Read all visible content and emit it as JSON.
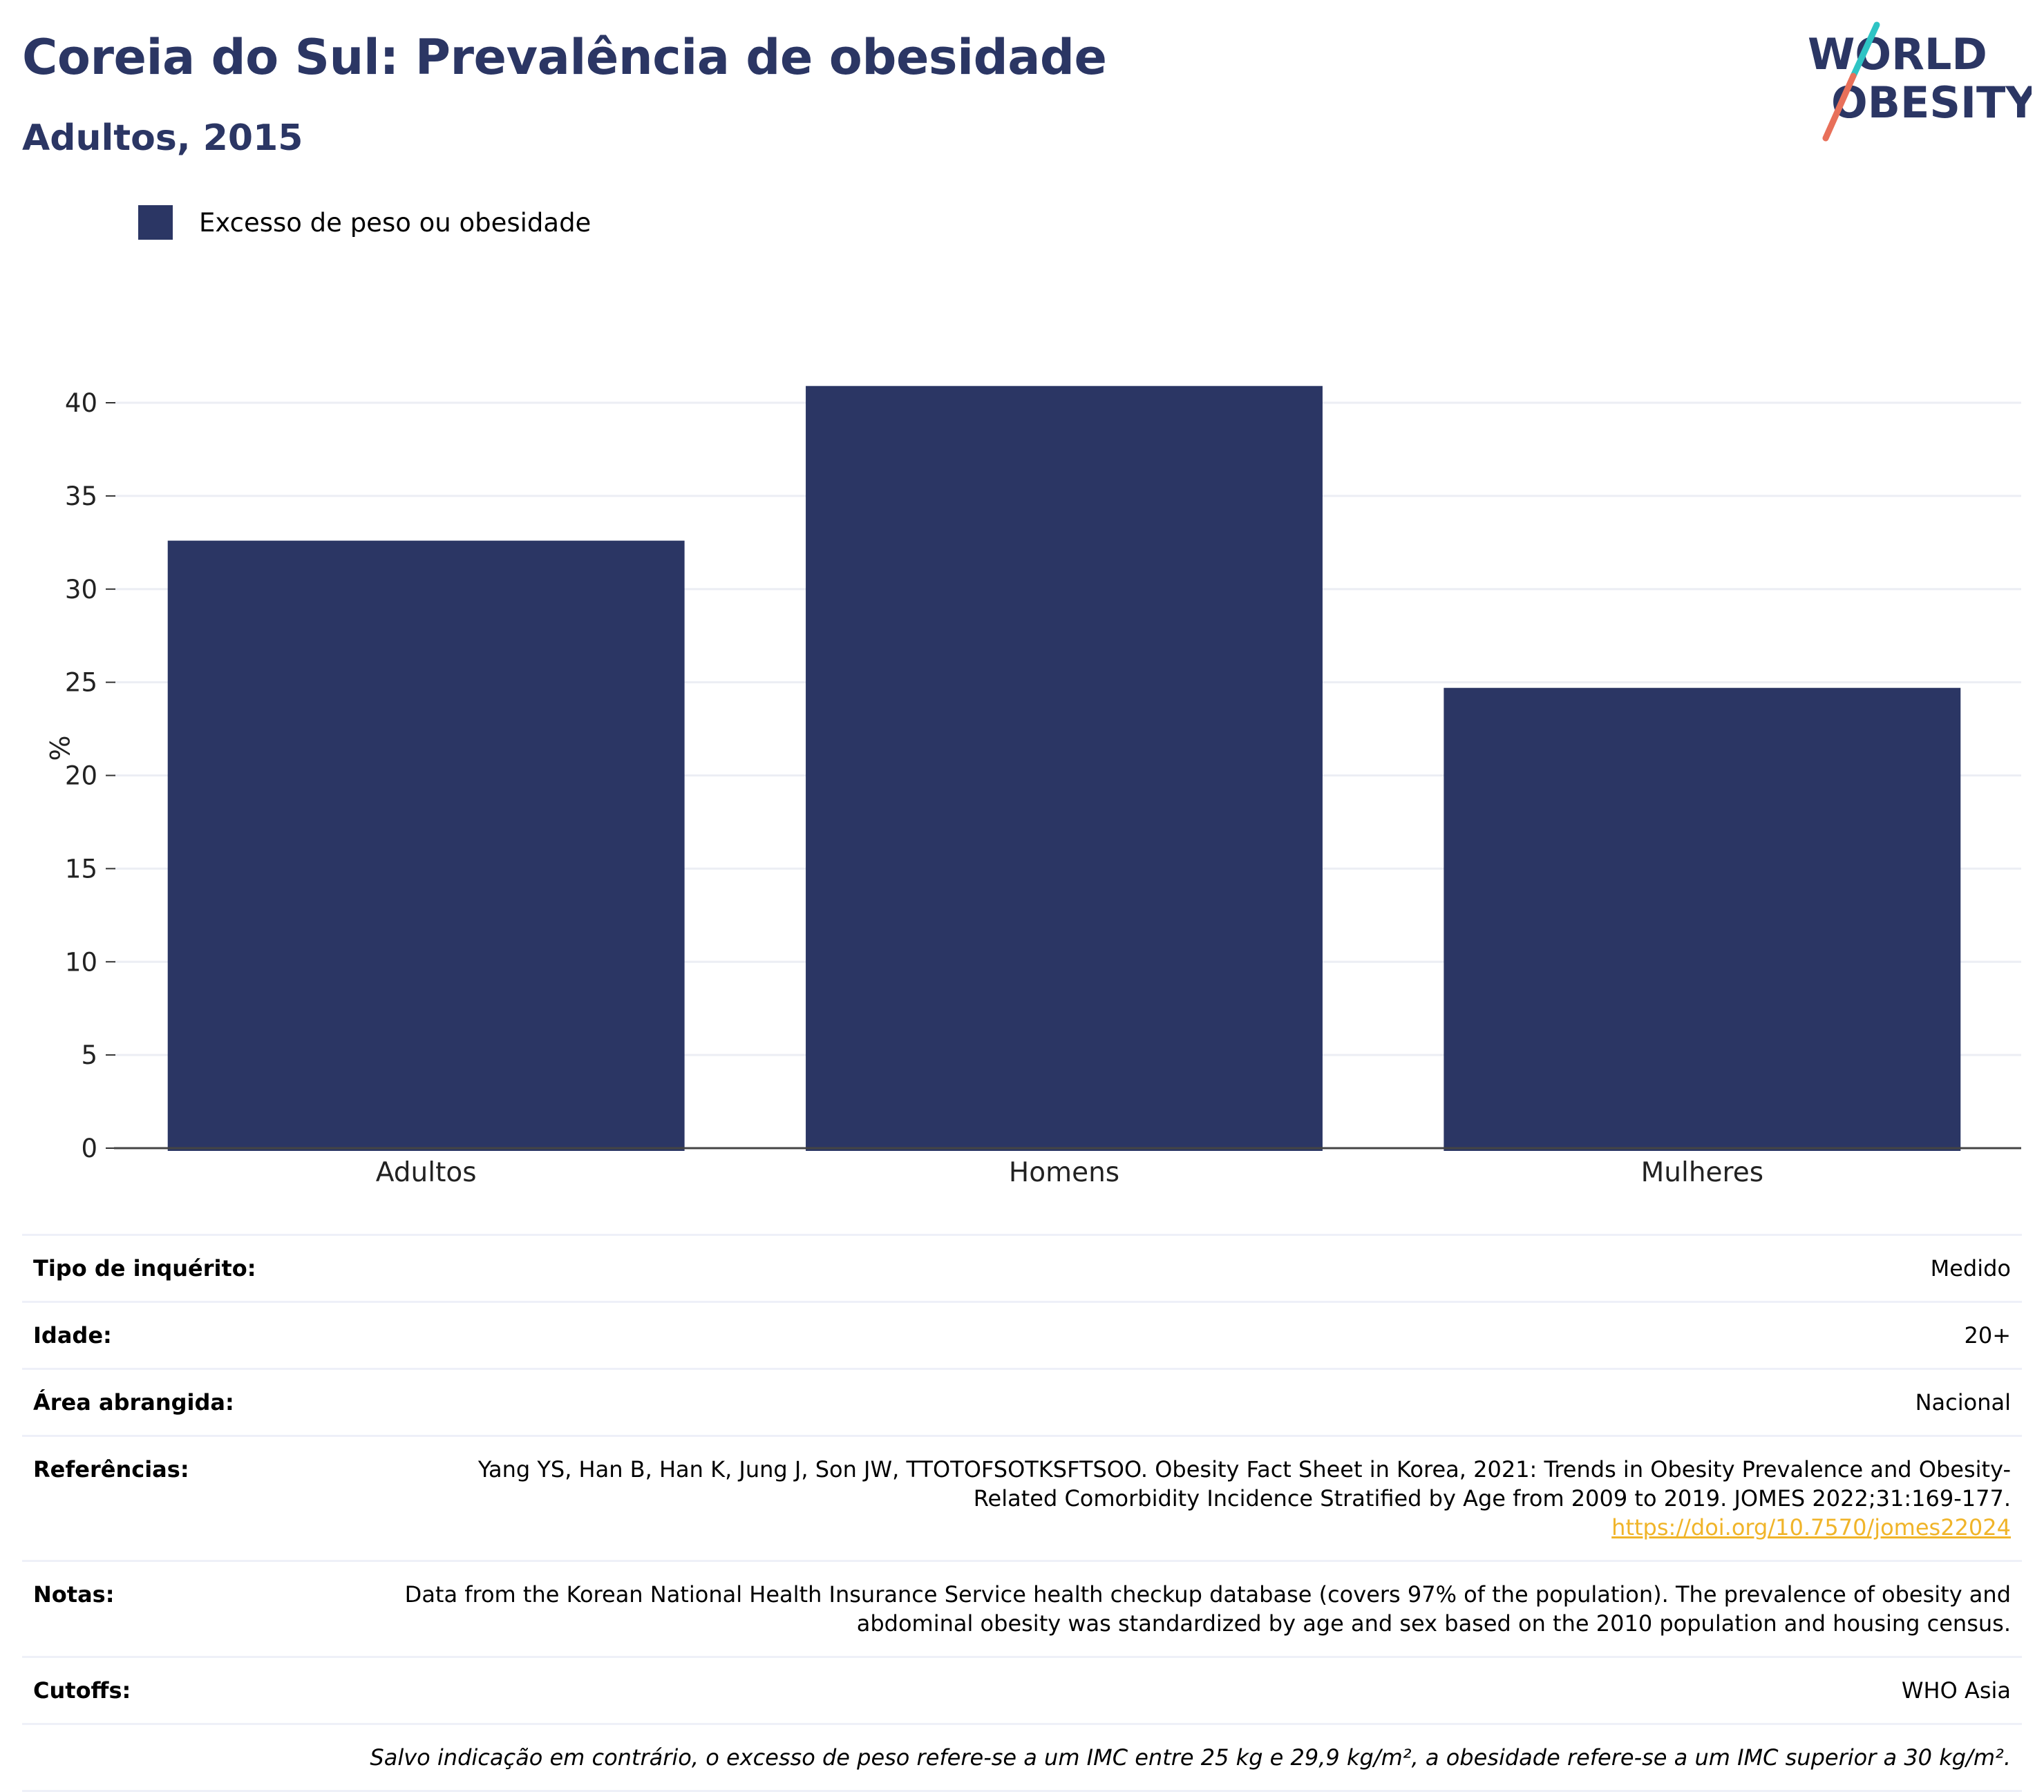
{
  "header": {
    "title": "Coreia do Sul: Prevalência de obesidade",
    "subtitle": "Adultos, 2015"
  },
  "logo": {
    "line1": "WORLD",
    "line2": "OBESITY"
  },
  "colors": {
    "bar": "#2b3664",
    "title": "#2b3664",
    "grid": "#eceef4",
    "link": "#f0b429",
    "logo_teal": "#2ec4c4",
    "logo_coral": "#e8705a"
  },
  "chart_data": {
    "type": "bar",
    "categories": [
      "Adultos",
      "Homens",
      "Mulheres"
    ],
    "series": [
      {
        "name": "Excesso de peso ou obesidade",
        "values": [
          32.6,
          40.9,
          24.7
        ]
      }
    ],
    "ylabel": "%",
    "xlabel": "",
    "ylim": [
      0,
      42
    ],
    "yticks": [
      0,
      5,
      10,
      15,
      20,
      25,
      30,
      35,
      40
    ],
    "grid": true,
    "legend": "top-left"
  },
  "info": {
    "survey_type": {
      "label": "Tipo de inquérito:",
      "value": "Medido"
    },
    "age": {
      "label": "Idade:",
      "value": "20+"
    },
    "area": {
      "label": "Área abrangida:",
      "value": "Nacional"
    },
    "references": {
      "label": "Referências:",
      "value": "Yang YS, Han B, Han K, Jung J, Son JW, TTOTOFSOTKSFTSOO. Obesity Fact Sheet in Korea, 2021: Trends in Obesity Prevalence and Obesity-Related Comorbidity Incidence Stratified by Age from 2009 to 2019. JOMES 2022;31:169-177.",
      "link": "https://doi.org/10.7570/jomes22024"
    },
    "notes": {
      "label": "Notas:",
      "value": "Data from the Korean National Health Insurance Service health checkup database (covers 97% of the population). The prevalence of obesity and abdominal obesity was standardized by age and sex based on the 2010 population and housing census."
    },
    "cutoffs": {
      "label": "Cutoffs:",
      "value": "WHO Asia"
    },
    "footnote": "Salvo indicação em contrário, o excesso de peso refere-se a um IMC entre 25 kg e 29,9 kg/m², a obesidade refere-se a um IMC superior a 30 kg/m²."
  }
}
